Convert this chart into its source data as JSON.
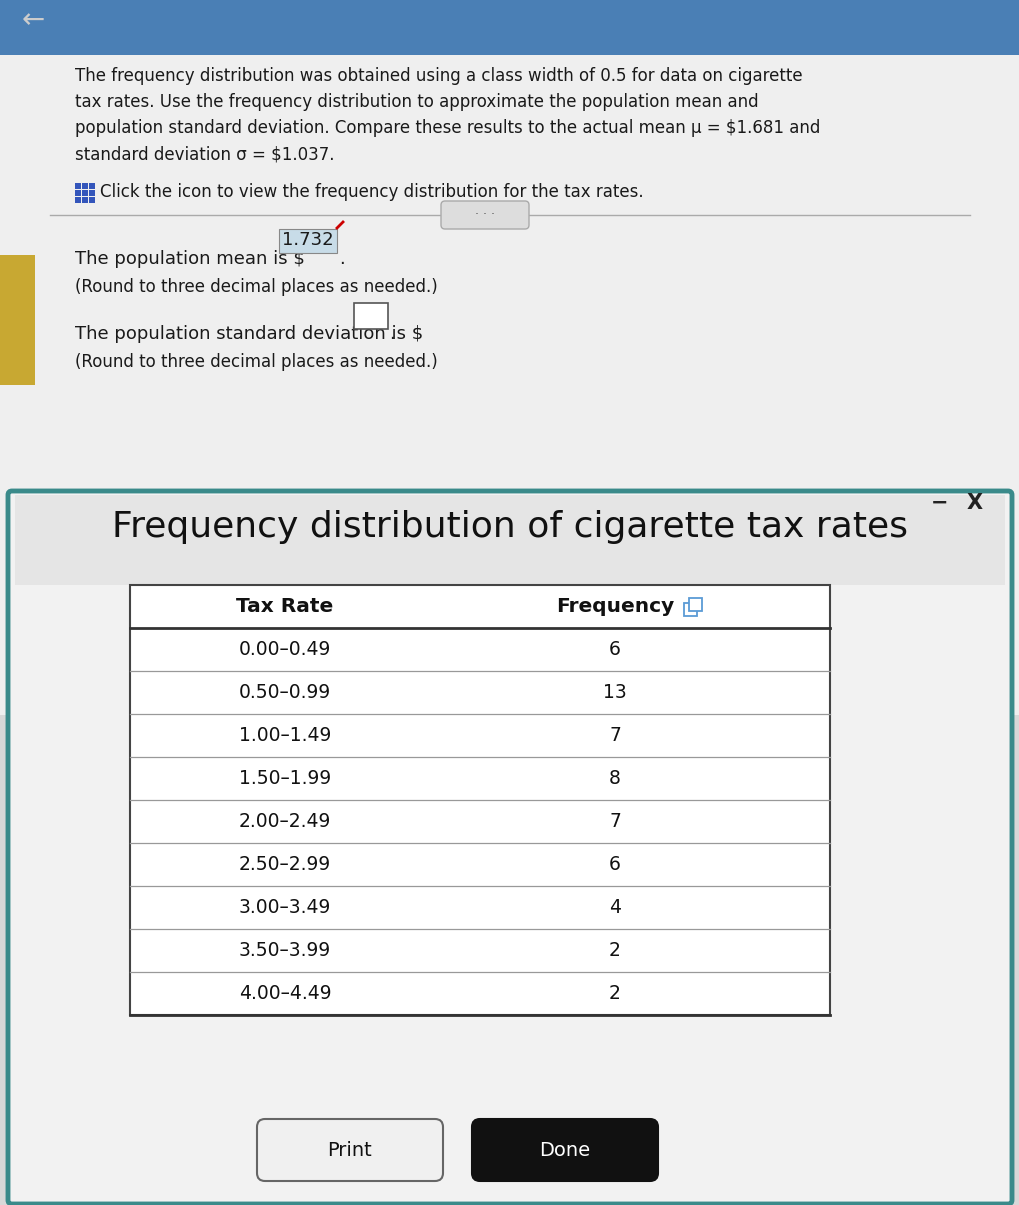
{
  "top_bg_color": "#4a7fb5",
  "main_bg_color": "#d8d8d8",
  "top_panel_bg": "#efefef",
  "dialog_bg_color": "#f2f2f2",
  "dialog_border_color": "#3a8a8a",
  "table_bg_color": "#ffffff",
  "col1_header": "Tax Rate",
  "col2_header": "Frequency",
  "tax_rates": [
    "0.00–0.49",
    "0.50–0.99",
    "1.00–1.49",
    "1.50–1.99",
    "2.00–2.49",
    "2.50–2.99",
    "3.00–3.49",
    "3.50–3.99",
    "4.00–4.49"
  ],
  "frequencies": [
    6,
    13,
    7,
    8,
    7,
    6,
    4,
    2,
    2
  ],
  "mean_value": "1.732",
  "dialog_title": "Frequency distribution of cigarette tax rates",
  "print_btn_text": "Print",
  "done_btn_text": "Done",
  "done_btn_bg": "#111111",
  "done_btn_text_color": "#ffffff",
  "print_btn_text_color": "#111111",
  "accent_color": "#c8a832",
  "back_arrow": "←",
  "header_line1": "The frequency distribution was obtained using a class width of 0.5 for data on cigarette",
  "header_line2": "tax rates. Use the frequency distribution to approximate the population mean and",
  "header_line3": "population standard deviation. Compare these results to the actual mean μ = $1.681 and",
  "header_line4": "standard deviation σ = $1.037.",
  "icon_text": "Click the icon to view the frequency distribution for the tax rates.",
  "mean_prefix": "The population mean is $ ",
  "mean_note": "(Round to three decimal places as needed.)",
  "std_prefix": "The population standard deviation is $",
  "std_note": "(Round to three decimal places as needed.)"
}
